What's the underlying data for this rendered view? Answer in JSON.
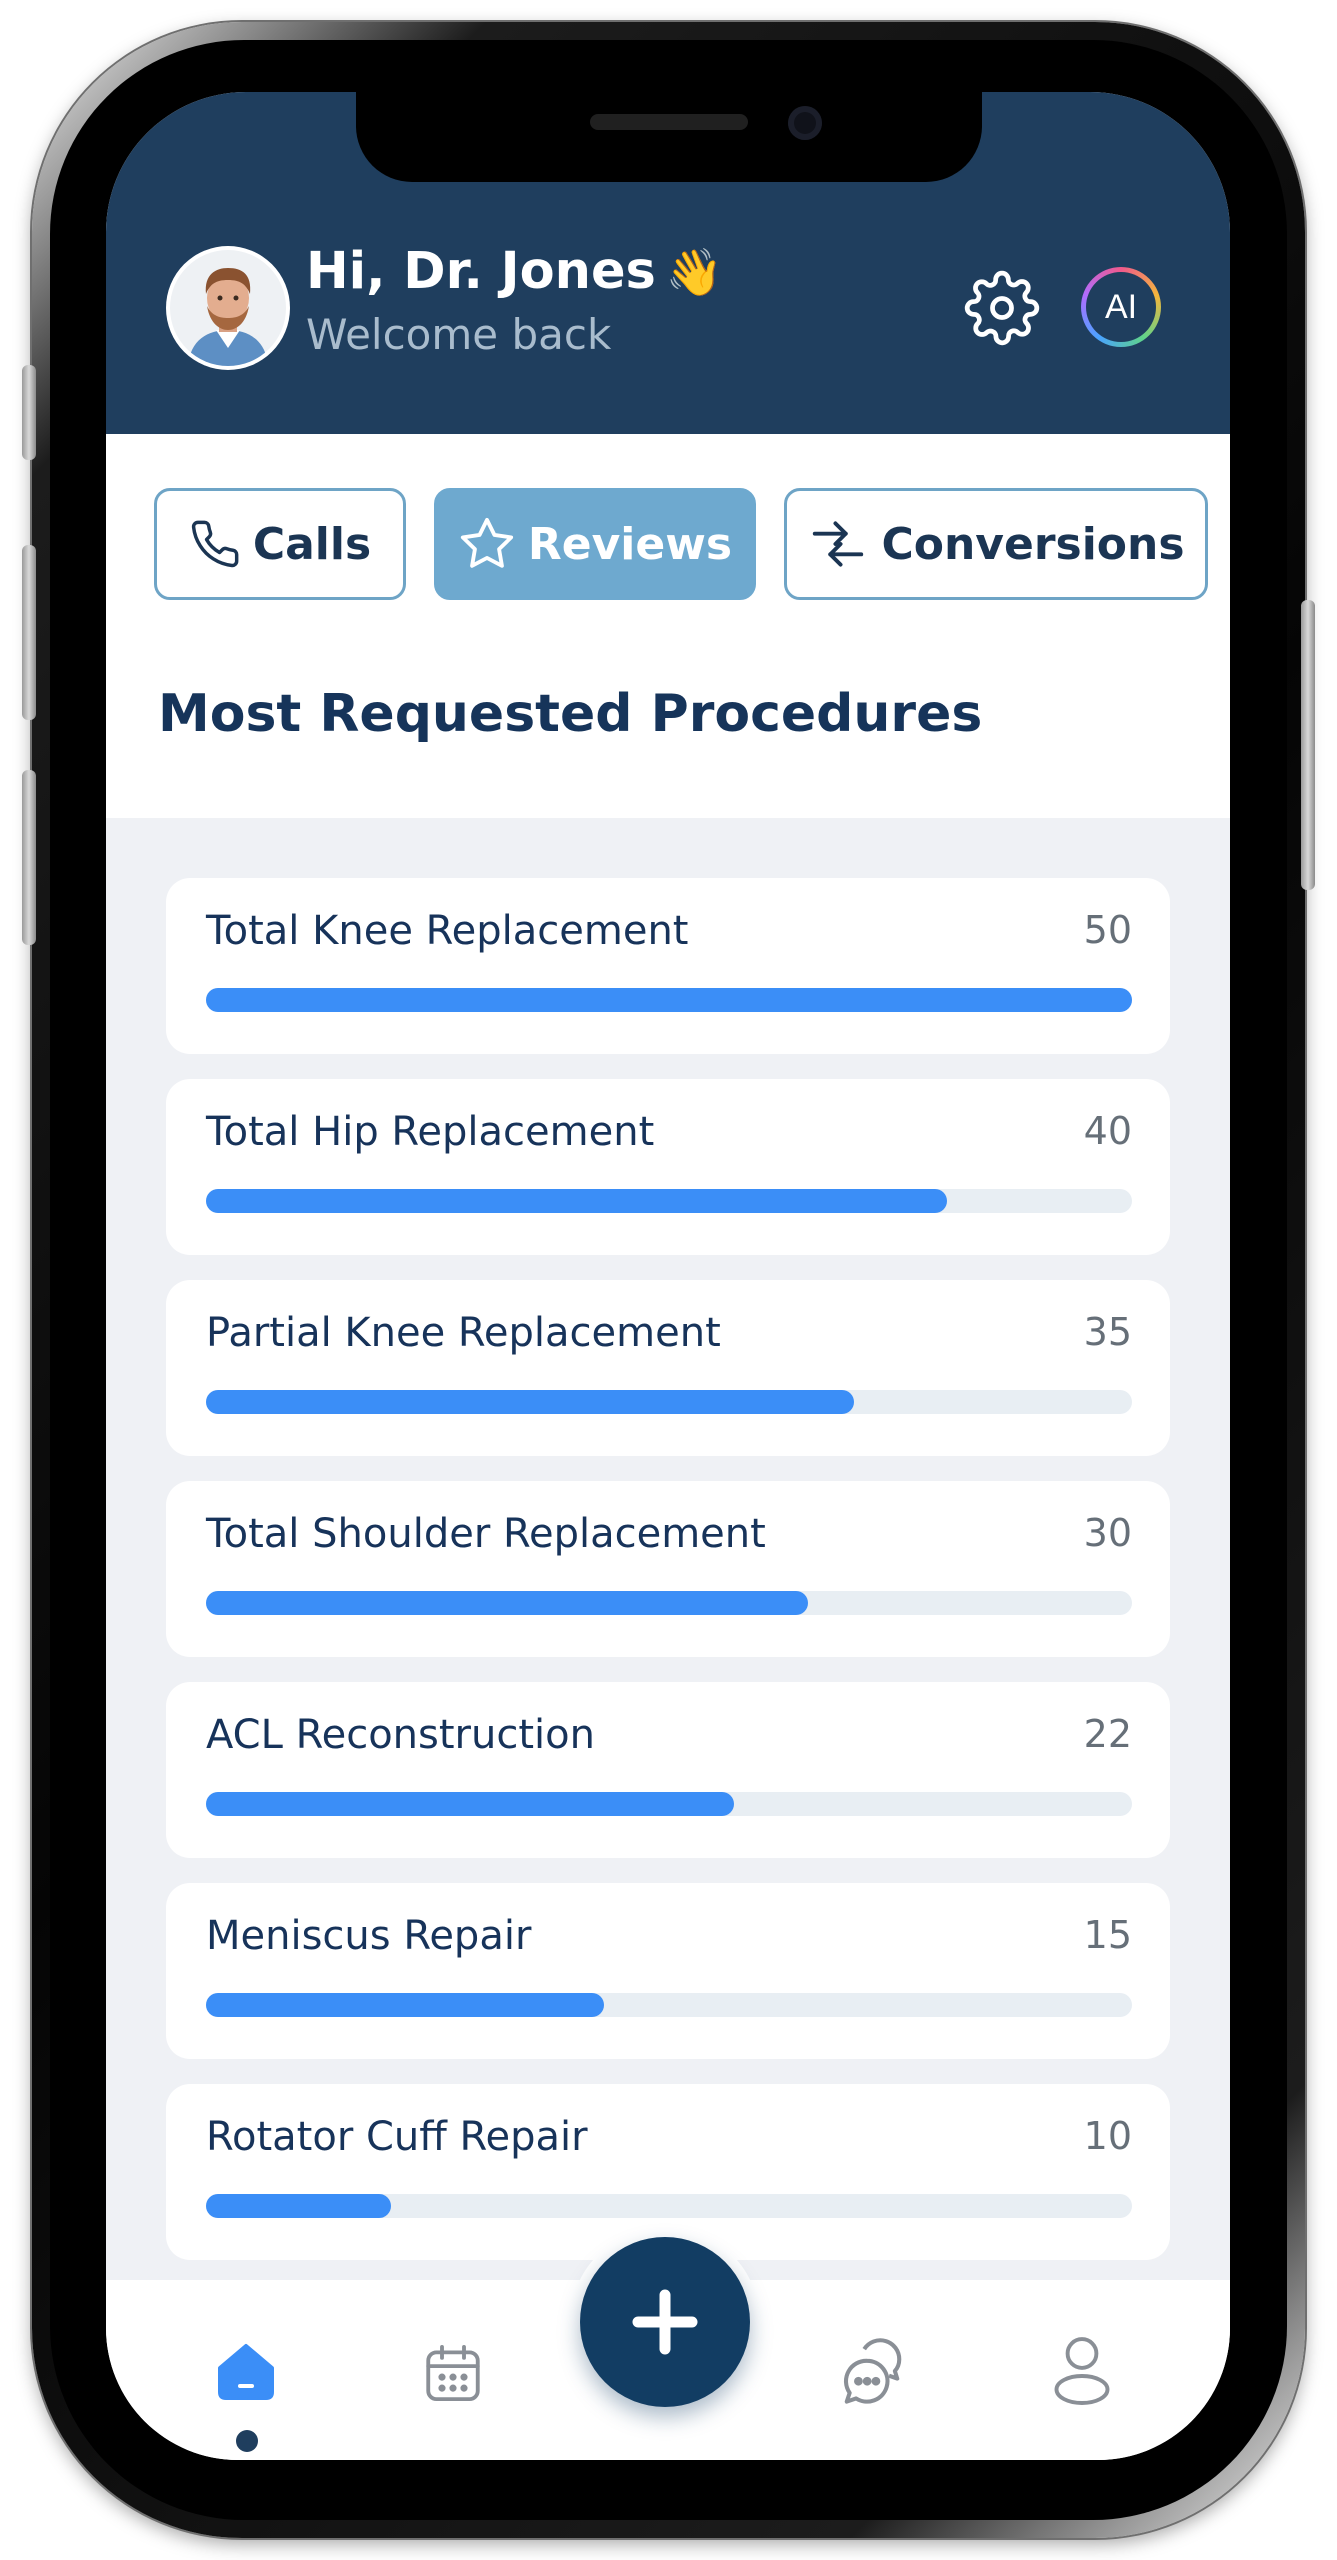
{
  "header": {
    "greeting": "Hi, Dr. Jones",
    "wave_emoji": "👋",
    "subtitle": "Welcome back",
    "ai_label": "AI"
  },
  "tabs": [
    {
      "label": "Calls",
      "icon": "phone-icon",
      "active": false
    },
    {
      "label": "Reviews",
      "icon": "star-icon",
      "active": true
    },
    {
      "label": "Conversions",
      "icon": "arrows-swap-icon",
      "active": false
    }
  ],
  "section_title": "Most Requested Procedures",
  "procedures": [
    {
      "name": "Total Knee Replacement",
      "count": "50",
      "progress": 1.0
    },
    {
      "name": "Total Hip Replacement",
      "count": "40",
      "progress": 0.8
    },
    {
      "name": "Partial Knee Replacement",
      "count": "35",
      "progress": 0.7
    },
    {
      "name": "Total Shoulder Replacement",
      "count": "30",
      "progress": 0.65
    },
    {
      "name": "ACL Reconstruction",
      "count": "22",
      "progress": 0.57
    },
    {
      "name": "Meniscus Repair",
      "count": "15",
      "progress": 0.43
    },
    {
      "name": "Rotator Cuff Repair",
      "count": "10",
      "progress": 0.2
    }
  ],
  "bottom_nav": [
    {
      "icon": "home-icon",
      "active": true
    },
    {
      "icon": "calendar-icon",
      "active": false
    },
    {
      "icon": "plus-icon",
      "active": false
    },
    {
      "icon": "chat-icon",
      "active": false
    },
    {
      "icon": "profile-icon",
      "active": false
    }
  ],
  "colors": {
    "header_bg": "#1f3e5e",
    "active_tab": "#6ea9cf",
    "bar_fill": "#3b8ef7",
    "fab_bg": "#123d63"
  }
}
